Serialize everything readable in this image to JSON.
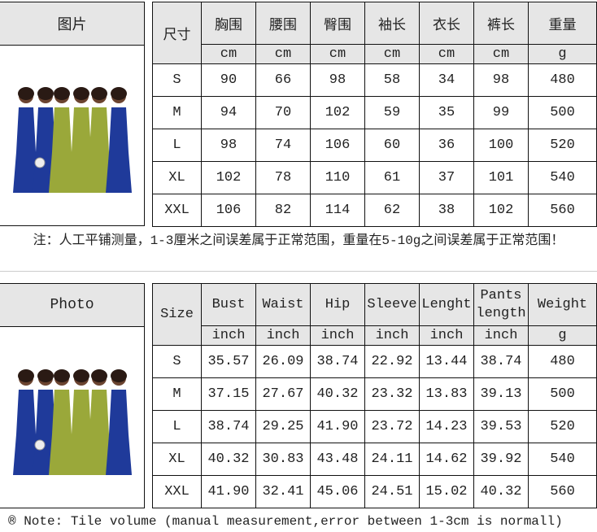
{
  "cm_table": {
    "photo_label": "图片",
    "size_label": "尺寸",
    "headers": [
      "胸围",
      "腰围",
      "臀围",
      "袖长",
      "衣长",
      "裤长",
      "重量"
    ],
    "units": [
      "cm",
      "cm",
      "cm",
      "cm",
      "cm",
      "cm",
      "g"
    ],
    "rows": [
      [
        "S",
        "90",
        "66",
        "98",
        "58",
        "34",
        "98",
        "480"
      ],
      [
        "M",
        "94",
        "70",
        "102",
        "59",
        "35",
        "99",
        "500"
      ],
      [
        "L",
        "98",
        "74",
        "106",
        "60",
        "36",
        "100",
        "520"
      ],
      [
        "XL",
        "102",
        "78",
        "110",
        "61",
        "37",
        "101",
        "540"
      ],
      [
        "XXL",
        "106",
        "82",
        "114",
        "62",
        "38",
        "102",
        "560"
      ]
    ],
    "note": "注：人工平铺测量，1-3厘米之间误差属于正常范围，重量在5-10g之间误差属于正常范围！"
  },
  "inch_table": {
    "photo_label": "Photo",
    "size_label": "Size",
    "headers": [
      "Bust",
      "Waist",
      "Hip",
      "Sleeve",
      "Lenght",
      "Pants length",
      "Weight"
    ],
    "units": [
      "inch",
      "inch",
      "inch",
      "inch",
      "inch",
      "inch",
      "g"
    ],
    "rows": [
      [
        "S",
        "35.57",
        "26.09",
        "38.74",
        "22.92",
        "13.44",
        "38.74",
        "480"
      ],
      [
        "M",
        "37.15",
        "27.67",
        "40.32",
        "23.32",
        "13.83",
        "39.13",
        "500"
      ],
      [
        "L",
        "38.74",
        "29.25",
        "41.90",
        "23.72",
        "14.23",
        "39.53",
        "520"
      ],
      [
        "XL",
        "40.32",
        "30.83",
        "43.48",
        "24.11",
        "14.62",
        "39.92",
        "540"
      ],
      [
        "XXL",
        "41.90",
        "32.41",
        "45.06",
        "24.51",
        "15.02",
        "40.32",
        "560"
      ]
    ],
    "note": "® Note: Tile volume (manual measurement,error between 1-3cm is normall)"
  },
  "colors": {
    "header_bg": "#e6e6e6",
    "border": "#111111",
    "blue_outfit": "#1f3a9a",
    "olive_outfit": "#9aa83a"
  }
}
